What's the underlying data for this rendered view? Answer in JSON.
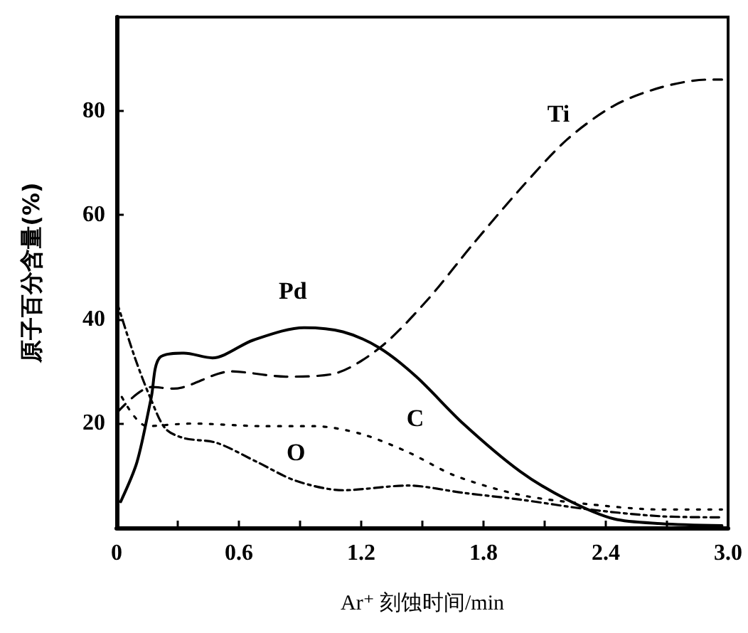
{
  "chart_data": {
    "type": "line",
    "xlabel": "Ar⁺ 刻蚀时间/min",
    "ylabel": "原子百分含量(%)",
    "xlim": [
      0,
      3.0
    ],
    "ylim": [
      0,
      98
    ],
    "xticks": [
      "0",
      {
        "value": 0.3,
        "label": null
      },
      {
        "value": 0.6,
        "label": "0.6"
      },
      {
        "value": 0.9,
        "label": null
      },
      {
        "value": 1.2,
        "label": "1.2"
      },
      {
        "value": 1.5,
        "label": null
      },
      {
        "value": 1.8,
        "label": "1.8"
      },
      {
        "value": 2.1,
        "label": null
      },
      {
        "value": 2.4,
        "label": "2.4"
      },
      {
        "value": 2.7,
        "label": null
      },
      {
        "value": 3.0,
        "label": "3.0"
      }
    ],
    "yticks": [
      20,
      40,
      60,
      80
    ],
    "grid": false,
    "legend": false,
    "marker": "none",
    "series": [
      {
        "name": "Ti",
        "color": "#000000",
        "line_style": "dashed",
        "x": [
          0,
          0.17,
          0.28,
          0.56,
          0.83,
          1.06,
          1.29,
          1.52,
          1.75,
          1.98,
          2.21,
          2.44,
          2.67,
          2.9,
          2.97
        ],
        "values": [
          22,
          27,
          26.7,
          30,
          29,
          29.5,
          34.5,
          43.5,
          54.5,
          65,
          74.5,
          81,
          84.5,
          86,
          86
        ]
      },
      {
        "name": "Pd",
        "color": "#000000",
        "line_style": "solid",
        "x": [
          0.02,
          0.1,
          0.17,
          0.21,
          0.33,
          0.47,
          0.67,
          0.92,
          1.11,
          1.29,
          1.47,
          1.7,
          1.98,
          2.21,
          2.44,
          2.67,
          2.97
        ],
        "values": [
          5,
          12.6,
          25,
          32.6,
          33.5,
          32.6,
          36,
          38.4,
          37.6,
          34.5,
          29,
          20,
          10.8,
          5.4,
          1.7,
          0.8,
          0.4
        ]
      },
      {
        "name": "C",
        "color": "#000000",
        "line_style": "dotted",
        "x": [
          0,
          0.15,
          0.37,
          0.72,
          0.97,
          1.2,
          1.43,
          1.66,
          1.98,
          2.32,
          2.67,
          2.97
        ],
        "values": [
          27,
          19.5,
          20,
          19.5,
          19.5,
          18,
          14.5,
          10,
          6.3,
          4.5,
          3.5,
          3.5
        ]
      },
      {
        "name": "O",
        "color": "#000000",
        "line_style": "dashdot",
        "x": [
          0,
          0.09,
          0.17,
          0.24,
          0.33,
          0.49,
          0.69,
          0.88,
          1.11,
          1.43,
          1.7,
          1.98,
          2.32,
          2.67,
          2.97
        ],
        "values": [
          43.5,
          32.6,
          24.5,
          19,
          17.2,
          16.3,
          12.6,
          9,
          7.2,
          8.1,
          6.7,
          5.4,
          3.5,
          2.2,
          2
        ]
      }
    ]
  }
}
